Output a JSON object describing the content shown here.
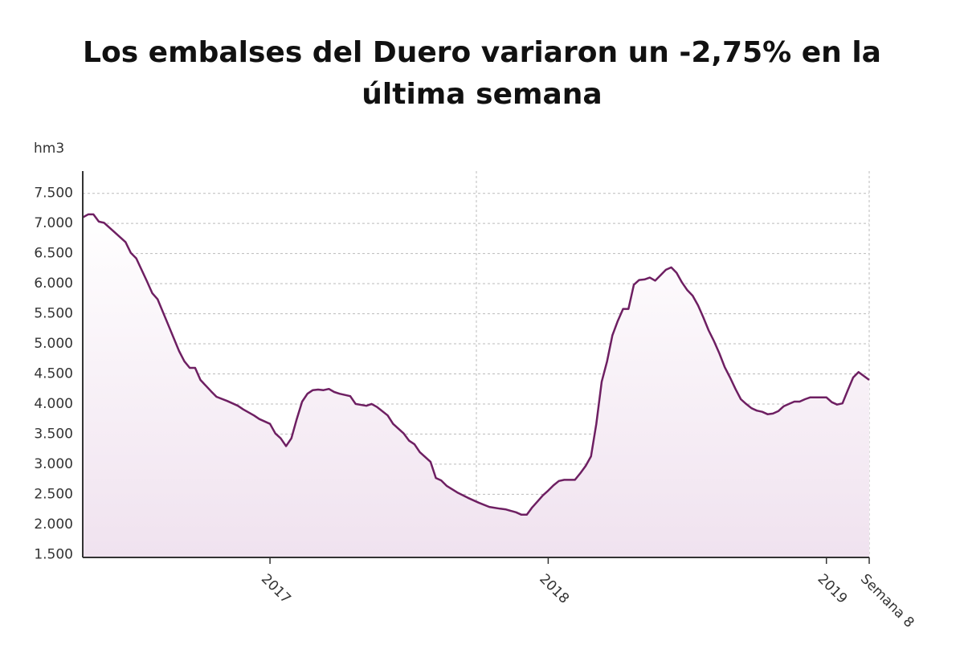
{
  "chart_data": {
    "type": "line",
    "title": "Los embalses del Duero variaron un -2,75% en la última semana",
    "y_label": "hm3",
    "color": "#6e1f62",
    "x": [
      0,
      1,
      2,
      3,
      4,
      6,
      8,
      9,
      10,
      12,
      13,
      14,
      16,
      18,
      19,
      20,
      21,
      22,
      24,
      25,
      27,
      28,
      29,
      30,
      32,
      33,
      35,
      36,
      37,
      38,
      39,
      40,
      41,
      42,
      43,
      44,
      45,
      46,
      47,
      48,
      50,
      51,
      53,
      54,
      55,
      57,
      58,
      60,
      61,
      62,
      63,
      65,
      66,
      67,
      68,
      70,
      72,
      74,
      76,
      78,
      79,
      81,
      82,
      83,
      84,
      85,
      86,
      87,
      88,
      89,
      90,
      92,
      93,
      94,
      95,
      96,
      97,
      98,
      99,
      100,
      101,
      102,
      103,
      104,
      105,
      106,
      107,
      108,
      109,
      110,
      111,
      112,
      113,
      114,
      115,
      116,
      117,
      118,
      119,
      120,
      121,
      122,
      123,
      124,
      125,
      126,
      127,
      128,
      129,
      130,
      131,
      132,
      133,
      134,
      135,
      136,
      137,
      139,
      140,
      141,
      142,
      143,
      144,
      145,
      147
    ],
    "values": [
      7100,
      7150,
      7150,
      7030,
      7010,
      6850,
      6690,
      6510,
      6420,
      6040,
      5840,
      5740,
      5310,
      4880,
      4710,
      4600,
      4600,
      4400,
      4210,
      4120,
      4050,
      4010,
      3970,
      3910,
      3810,
      3750,
      3670,
      3510,
      3430,
      3300,
      3430,
      3750,
      4040,
      4170,
      4230,
      4240,
      4230,
      4250,
      4200,
      4170,
      4130,
      4000,
      3970,
      4000,
      3950,
      3810,
      3670,
      3510,
      3390,
      3330,
      3200,
      3040,
      2770,
      2730,
      2640,
      2530,
      2440,
      2360,
      2290,
      2260,
      2250,
      2200,
      2160,
      2160,
      2280,
      2380,
      2480,
      2560,
      2650,
      2720,
      2740,
      2740,
      2850,
      2970,
      3130,
      3670,
      4370,
      4710,
      5140,
      5380,
      5580,
      5580,
      5980,
      6060,
      6070,
      6100,
      6050,
      6140,
      6230,
      6270,
      6180,
      6020,
      5890,
      5800,
      5640,
      5440,
      5220,
      5040,
      4840,
      4610,
      4440,
      4250,
      4080,
      4000,
      3930,
      3890,
      3870,
      3830,
      3840,
      3880,
      3960,
      4000,
      4040,
      4040,
      4080,
      4110,
      4110,
      4110,
      4030,
      3990,
      4010,
      4230,
      4440,
      4530,
      4400
    ],
    "xlim": [
      0,
      147
    ],
    "xticks": [
      {
        "value": 35,
        "label": "2017"
      },
      {
        "value": 87,
        "label": "2018"
      },
      {
        "value": 139,
        "label": "2019"
      },
      {
        "value": 147,
        "label": "Semana 8"
      }
    ],
    "ylim": [
      1450,
      7870
    ],
    "yticks": [
      {
        "value": 1500,
        "label": "1.500"
      },
      {
        "value": 2000,
        "label": "2.000"
      },
      {
        "value": 2500,
        "label": "2.500"
      },
      {
        "value": 3000,
        "label": "3.000"
      },
      {
        "value": 3500,
        "label": "3.500"
      },
      {
        "value": 4000,
        "label": "4.000"
      },
      {
        "value": 4500,
        "label": "4.500"
      },
      {
        "value": 5000,
        "label": "5.000"
      },
      {
        "value": 5500,
        "label": "5.500"
      },
      {
        "value": 6000,
        "label": "6.000"
      },
      {
        "value": 6500,
        "label": "6.500"
      },
      {
        "value": 7000,
        "label": "7.000"
      },
      {
        "value": 7500,
        "label": "7.500"
      }
    ],
    "grid": true
  }
}
